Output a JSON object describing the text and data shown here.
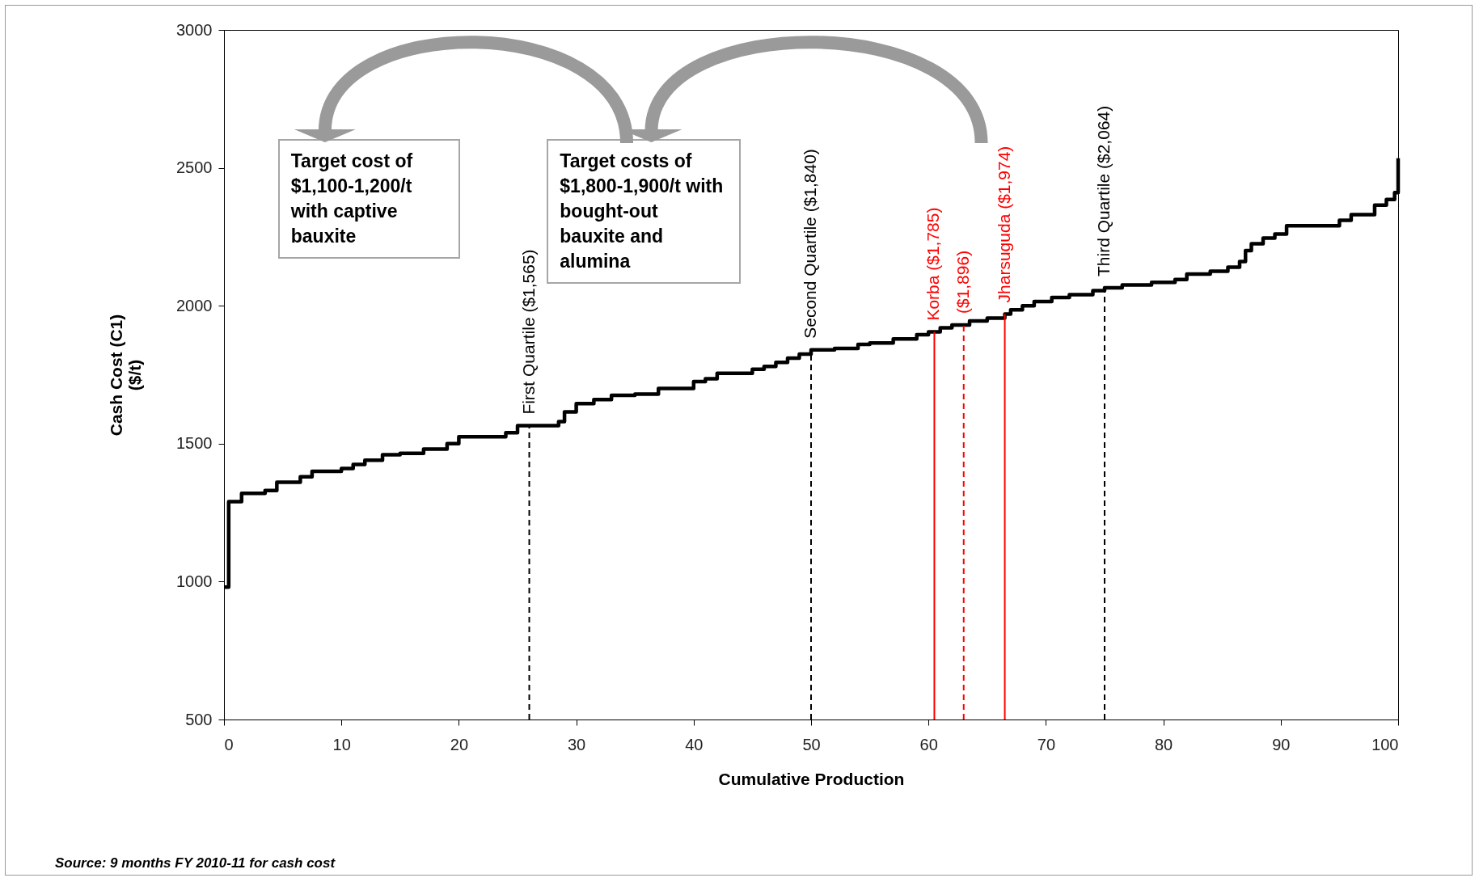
{
  "chart_data": {
    "type": "step",
    "xlabel": "Cumulative Production",
    "ylabel": "Cash Cost (C1)\n($/t)",
    "x": [
      0,
      0.4,
      1.5,
      3.5,
      4.5,
      6.5,
      7.5,
      10,
      11,
      12,
      13.5,
      15,
      17,
      19,
      20,
      24,
      25,
      28.5,
      29,
      30,
      31.5,
      33,
      35,
      37,
      40,
      41,
      42,
      45,
      46,
      47,
      48,
      49,
      50,
      52,
      54,
      55,
      57,
      59,
      60,
      61,
      62,
      63.5,
      65,
      66.5,
      67,
      68,
      69,
      70.5,
      72,
      74,
      75,
      76.5,
      79,
      81,
      82,
      84,
      85.5,
      86.5,
      87,
      87.5,
      88.5,
      89.5,
      90.5,
      95,
      96,
      98,
      99,
      99.7,
      100
    ],
    "series": [
      {
        "color": "#000000",
        "values": [
          980,
          1290,
          1320,
          1330,
          1360,
          1380,
          1400,
          1410,
          1425,
          1440,
          1460,
          1465,
          1480,
          1500,
          1525,
          1540,
          1565,
          1580,
          1615,
          1645,
          1660,
          1675,
          1680,
          1700,
          1725,
          1735,
          1755,
          1770,
          1780,
          1795,
          1810,
          1825,
          1840,
          1845,
          1860,
          1865,
          1880,
          1895,
          1905,
          1920,
          1930,
          1945,
          1955,
          1970,
          1985,
          2000,
          2015,
          2030,
          2040,
          2055,
          2065,
          2075,
          2085,
          2095,
          2115,
          2125,
          2140,
          2160,
          2200,
          2225,
          2245,
          2260,
          2290,
          2310,
          2330,
          2365,
          2385,
          2410,
          2535
        ]
      }
    ],
    "xlim": [
      0,
      100
    ],
    "ylim": [
      500,
      3000
    ],
    "xticks": [
      0,
      10,
      20,
      30,
      40,
      50,
      60,
      70,
      80,
      90,
      100
    ],
    "yticks": [
      500,
      1000,
      1500,
      2000,
      2500,
      3000
    ],
    "ref_lines": [
      {
        "axis": "x",
        "value": 26,
        "label": "First Quartile ($1,565)",
        "color": "#000000",
        "line_style": "dashed"
      },
      {
        "axis": "x",
        "value": 50,
        "label": "Second Quartile ($1,840)",
        "color": "#000000",
        "line_style": "dashed"
      },
      {
        "axis": "x",
        "value": 60.5,
        "label": "Korba ($1,785)",
        "color": "#ff0000",
        "line_style": "solid"
      },
      {
        "axis": "x",
        "value": 63,
        "color": "#ff0000",
        "line_style": "dashed"
      },
      {
        "axis": "x",
        "value": 66.5,
        "label": "Jharsuguda ($1,974)",
        "color": "#ff0000",
        "line_style": "solid"
      },
      {
        "axis": "x",
        "value": 75,
        "label": "Third Quartile ($2,064)",
        "color": "#000000",
        "line_style": "dashed"
      }
    ],
    "annotations": [
      {
        "text": "($1,896)",
        "x": 63,
        "y": 1930
      },
      "Target cost of $1,100-1,200/t with captive bauxite",
      "Target costs of $1,800-1,900/t with bought-out bauxite and alumina",
      "Source: 9 months FY 2010-11 for cash cost"
    ]
  }
}
